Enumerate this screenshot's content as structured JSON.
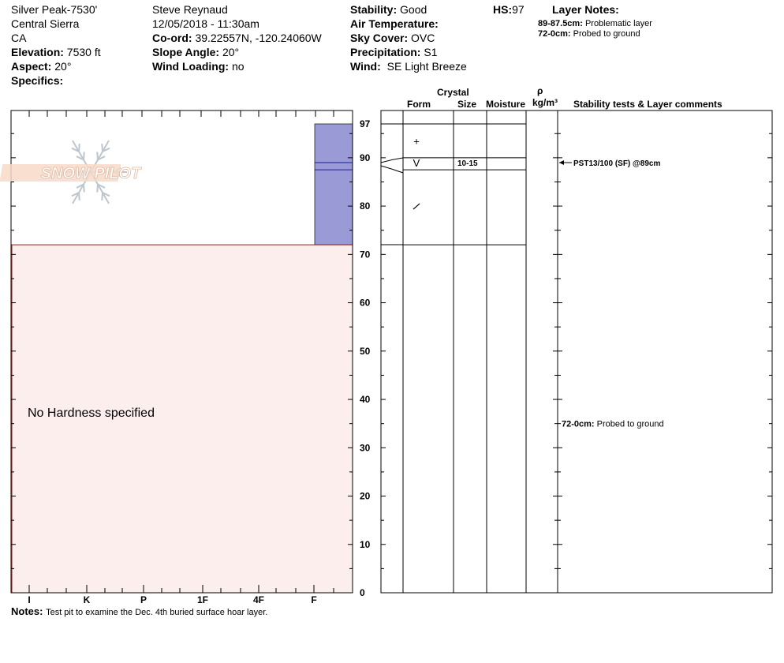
{
  "header": {
    "location": "Silver Peak-7530'",
    "range": "Central Sierra",
    "state": "CA",
    "elevation_label": "Elevation:",
    "elevation_value": "7530 ft",
    "aspect_label": "Aspect:",
    "aspect_value": "20°",
    "specifics_label": "Specifics:",
    "observer": "Steve Reynaud",
    "datetime": "12/05/2018 - 11:30am",
    "coord_label": "Co-ord:",
    "coord_value": "39.22557N, -120.24060W",
    "slope_label": "Slope Angle:",
    "slope_value": "20°",
    "wind_loading_label": "Wind Loading:",
    "wind_loading_value": "no",
    "stability_label": "Stability:",
    "stability_value": "Good",
    "air_temp_label": "Air Temperature:",
    "sky_label": "Sky Cover:",
    "sky_value": "OVC",
    "precip_label": "Precipitation:",
    "precip_value": "S1",
    "wind_label": "Wind:",
    "wind_value": "SE Light Breeze",
    "hs_label": "HS:",
    "hs_value": "97"
  },
  "layer_notes": {
    "title": "Layer Notes:",
    "notes": [
      {
        "range": "89-87.5cm:",
        "text": "Problematic layer"
      },
      {
        "range": "72-0cm:",
        "text": "Probed to ground"
      }
    ]
  },
  "logo_text": "SNOW PILOT",
  "notes": {
    "label": "Notes:",
    "text": "Test pit to examine the Dec. 4th buried surface hoar layer."
  },
  "columns": {
    "crystal": "Crystal",
    "form": "Form",
    "size": "Size",
    "moisture": "Moisture",
    "rho": "ρ",
    "density_unit": "kg/m³",
    "stability": "Stability tests & Layer comments"
  },
  "chart_data": {
    "type": "snow_profile",
    "height_axis": {
      "min": 0,
      "max": 97,
      "ticks": [
        0,
        10,
        20,
        30,
        40,
        50,
        60,
        70,
        80,
        90,
        97
      ],
      "units": "cm"
    },
    "hardness_axis": {
      "labels": [
        "I",
        "K",
        "P",
        "1F",
        "4F",
        "F"
      ]
    },
    "no_hardness_text": "No Hardness specified",
    "hardness_layers": [
      {
        "top": 97,
        "bottom": 72,
        "hardness": "F",
        "color": "#9a9ad6"
      }
    ],
    "no_data_zone": {
      "top": 72,
      "bottom": 0,
      "color": "#fdeeee"
    },
    "layer_boundaries": [
      97,
      90,
      87.5,
      72
    ],
    "weak_layer_lines": [
      89,
      87.5
    ],
    "crystal_forms": [
      {
        "height": 93.5,
        "symbol": "+"
      },
      {
        "height": 89,
        "symbol": "V",
        "size": "10-15"
      },
      {
        "height": 80,
        "symbol": "/"
      }
    ],
    "stability_tests": [
      {
        "height": 89,
        "text": "PST13/100 (SF) @89cm"
      }
    ],
    "layer_comments": [
      {
        "height": 35,
        "range": "72-0cm:",
        "text": "Probed to ground"
      }
    ]
  }
}
